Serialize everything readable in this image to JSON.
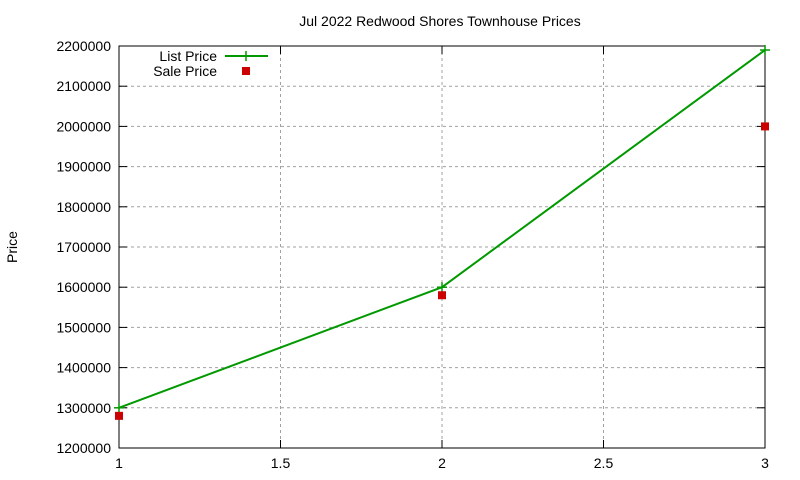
{
  "chart_data": {
    "type": "line",
    "title": "Jul 2022 Redwood Shores Townhouse Prices",
    "xlabel": "",
    "ylabel": "Price",
    "xlim": [
      1,
      3
    ],
    "ylim": [
      1200000,
      2200000
    ],
    "x_ticks": [
      "1",
      "1.5",
      "2",
      "2.5",
      "3"
    ],
    "y_ticks": [
      "1200000",
      "1300000",
      "1400000",
      "1500000",
      "1600000",
      "1700000",
      "1800000",
      "1900000",
      "2000000",
      "2100000",
      "2200000"
    ],
    "grid": true,
    "legend_position": "top-left",
    "series": [
      {
        "name": "List Price",
        "style": "linespoints",
        "color": "#009900",
        "x": [
          1,
          2,
          3
        ],
        "values": [
          1300000,
          1600000,
          2190000
        ]
      },
      {
        "name": "Sale Price",
        "style": "points",
        "color": "#cc0000",
        "x": [
          1,
          2,
          3
        ],
        "values": [
          1280000,
          1580000,
          2000000
        ]
      }
    ]
  }
}
